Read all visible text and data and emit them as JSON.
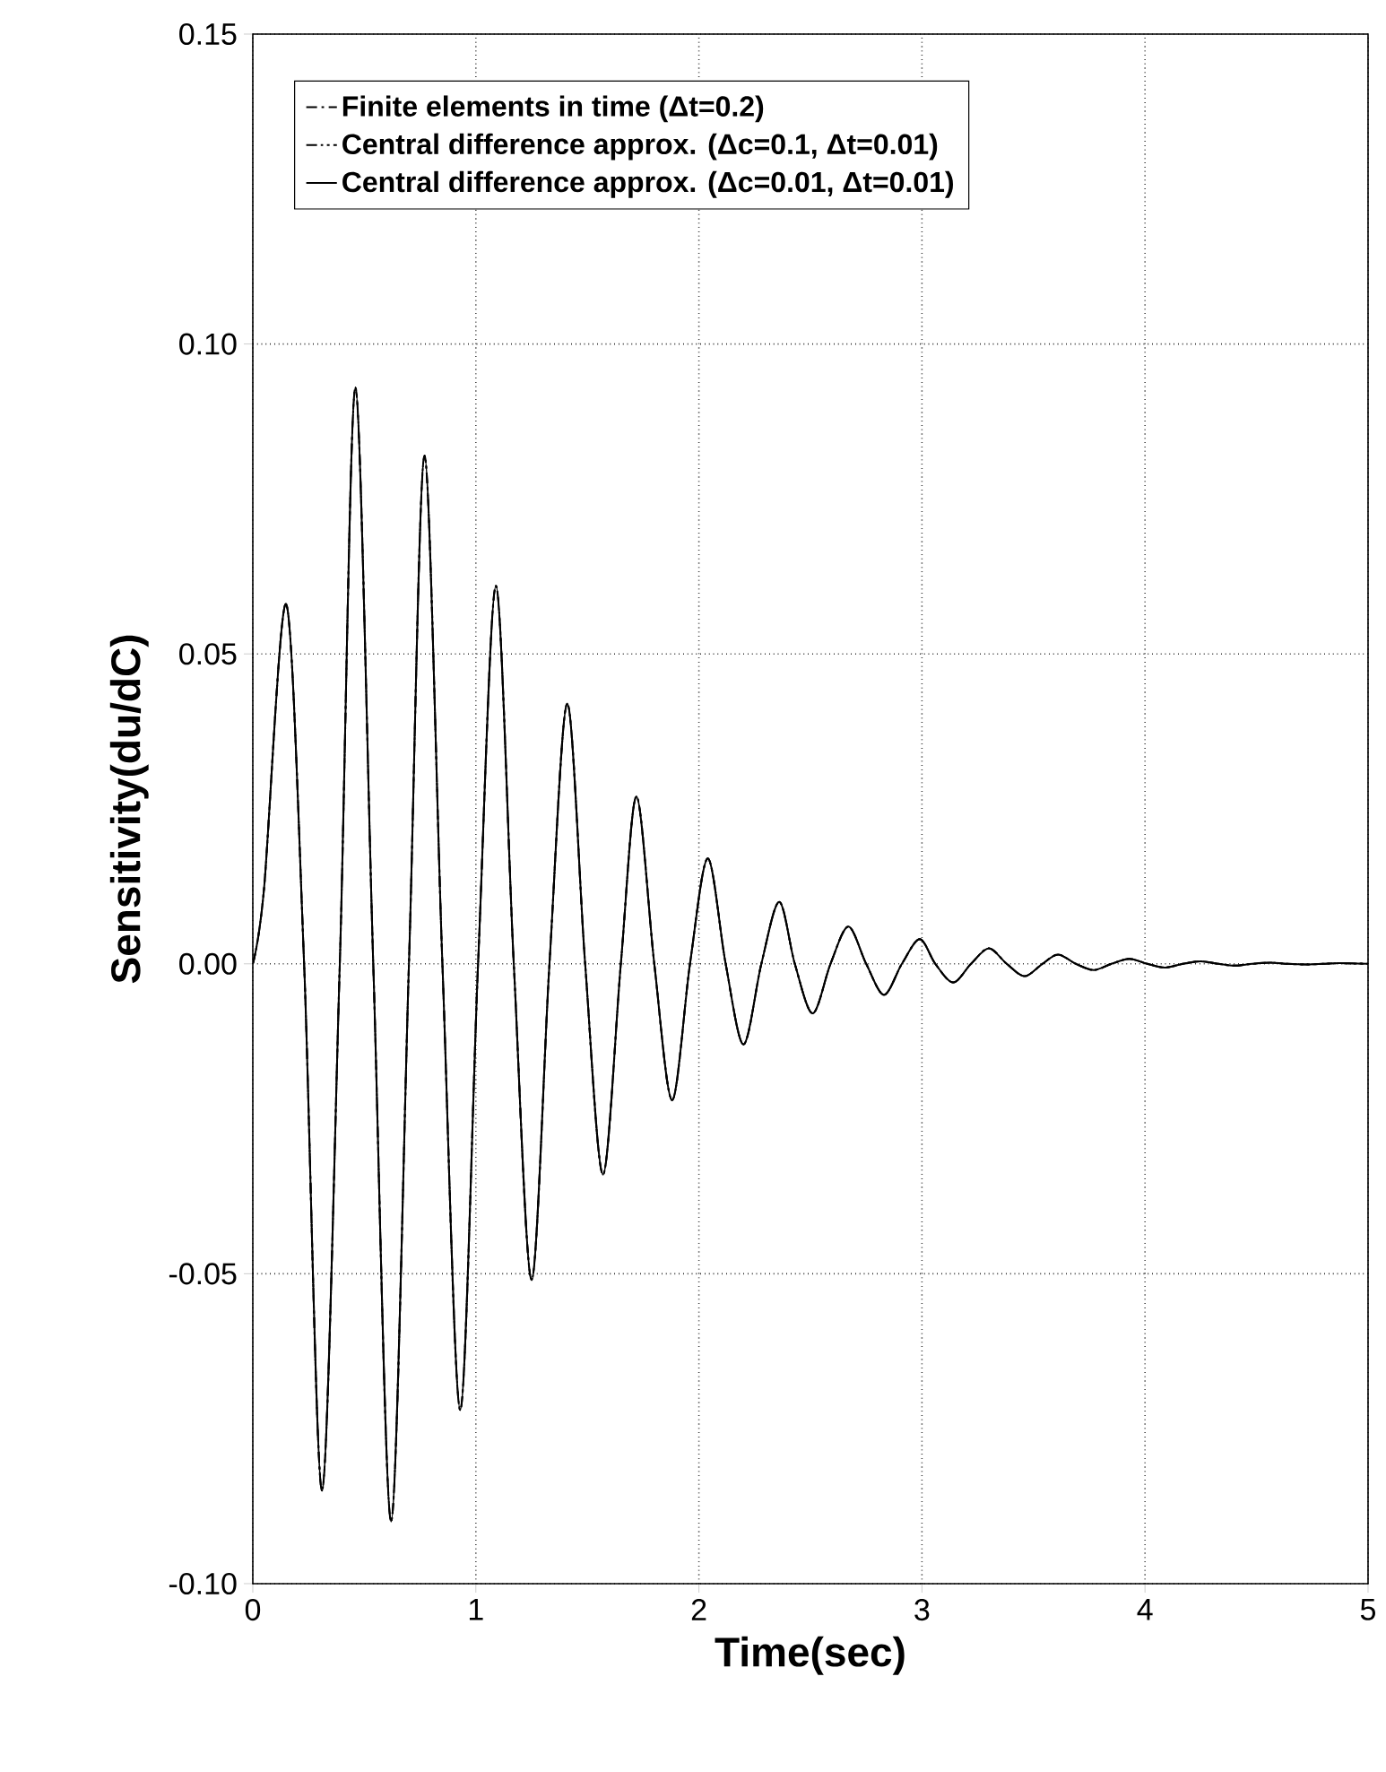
{
  "chart_data": {
    "type": "line",
    "xlabel": "Time(sec)",
    "ylabel": "Sensitivity(du/dC)",
    "xlim": [
      0,
      5
    ],
    "xticks": [
      0,
      1,
      2,
      3,
      4,
      5
    ],
    "ylim": [
      -0.1,
      0.15
    ],
    "yticks": [
      {
        "value": -0.1,
        "label": "-0.10"
      },
      {
        "value": -0.05,
        "label": "-0.05"
      },
      {
        "value": 0,
        "label": "0.00"
      },
      {
        "value": 0.05,
        "label": "0.05"
      },
      {
        "value": 0.1,
        "label": "0.10"
      },
      {
        "value": 0.15,
        "label": "0.15"
      }
    ],
    "grid": true,
    "legend": "top",
    "x": [
      0,
      0.05,
      0.15,
      0.23,
      0.31,
      0.39,
      0.46,
      0.54,
      0.62,
      0.7,
      0.77,
      0.85,
      0.93,
      1.01,
      1.09,
      1.17,
      1.25,
      1.33,
      1.41,
      1.49,
      1.57,
      1.65,
      1.72,
      1.8,
      1.88,
      1.96,
      2.04,
      2.12,
      2.2,
      2.28,
      2.36,
      2.43,
      2.51,
      2.59,
      2.67,
      2.75,
      2.83,
      2.91,
      2.99,
      3.06,
      3.14,
      3.22,
      3.3,
      3.38,
      3.46,
      3.54,
      3.61,
      3.69,
      3.77,
      3.85,
      3.93,
      4.01,
      4.09,
      4.17,
      4.25,
      4.33,
      4.4,
      4.48,
      4.56,
      4.64,
      4.72,
      4.8,
      4.87,
      5.0
    ],
    "series": [
      {
        "name": "Finite elements in time (Δt=0.2)",
        "color": "#000000",
        "line_style": "dashdot",
        "values": [
          0,
          0.012,
          0.058,
          0,
          -0.085,
          0,
          0.093,
          0,
          -0.09,
          0,
          0.082,
          0,
          -0.072,
          0,
          0.061,
          0,
          -0.051,
          0,
          0.042,
          0,
          -0.034,
          0,
          0.027,
          0,
          -0.022,
          0,
          0.017,
          0,
          -0.013,
          0,
          0.01,
          0,
          -0.008,
          0,
          0.006,
          0,
          -0.005,
          0,
          0.004,
          0,
          -0.003,
          0,
          0.0025,
          0,
          -0.002,
          0,
          0.0015,
          0,
          -0.001,
          0,
          0.0008,
          0,
          -0.0006,
          0,
          0.0004,
          0,
          -0.0003,
          0,
          0.0002,
          0,
          -0.0001,
          0,
          0.0001,
          0
        ]
      },
      {
        "name": "Central difference approx. (Δc=0.1, Δt=0.01)",
        "color": "#000000",
        "line_style": "dashdotdot",
        "values": [
          0,
          0.012,
          0.058,
          0,
          -0.085,
          0,
          0.093,
          0,
          -0.09,
          0,
          0.082,
          0,
          -0.072,
          0,
          0.061,
          0,
          -0.051,
          0,
          0.042,
          0,
          -0.034,
          0,
          0.027,
          0,
          -0.022,
          0,
          0.017,
          0,
          -0.013,
          0,
          0.01,
          0,
          -0.008,
          0,
          0.006,
          0,
          -0.005,
          0,
          0.004,
          0,
          -0.003,
          0,
          0.0025,
          0,
          -0.002,
          0,
          0.0015,
          0,
          -0.001,
          0,
          0.0008,
          0,
          -0.0006,
          0,
          0.0004,
          0,
          -0.0003,
          0,
          0.0002,
          0,
          -0.0001,
          0,
          0.0001,
          0
        ]
      },
      {
        "name": "Central difference approx. (Δc=0.01, Δt=0.01)",
        "color": "#000000",
        "line_style": "solid",
        "values": [
          0,
          0.012,
          0.058,
          0,
          -0.085,
          0,
          0.093,
          0,
          -0.09,
          0,
          0.082,
          0,
          -0.072,
          0,
          0.061,
          0,
          -0.051,
          0,
          0.042,
          0,
          -0.034,
          0,
          0.027,
          0,
          -0.022,
          0,
          0.017,
          0,
          -0.013,
          0,
          0.01,
          0,
          -0.008,
          0,
          0.006,
          0,
          -0.005,
          0,
          0.004,
          0,
          -0.003,
          0,
          0.0025,
          0,
          -0.002,
          0,
          0.0015,
          0,
          -0.001,
          0,
          0.0008,
          0,
          -0.0006,
          0,
          0.0004,
          0,
          -0.0003,
          0,
          0.0002,
          0,
          -0.0001,
          0,
          0.0001,
          0
        ]
      }
    ]
  }
}
